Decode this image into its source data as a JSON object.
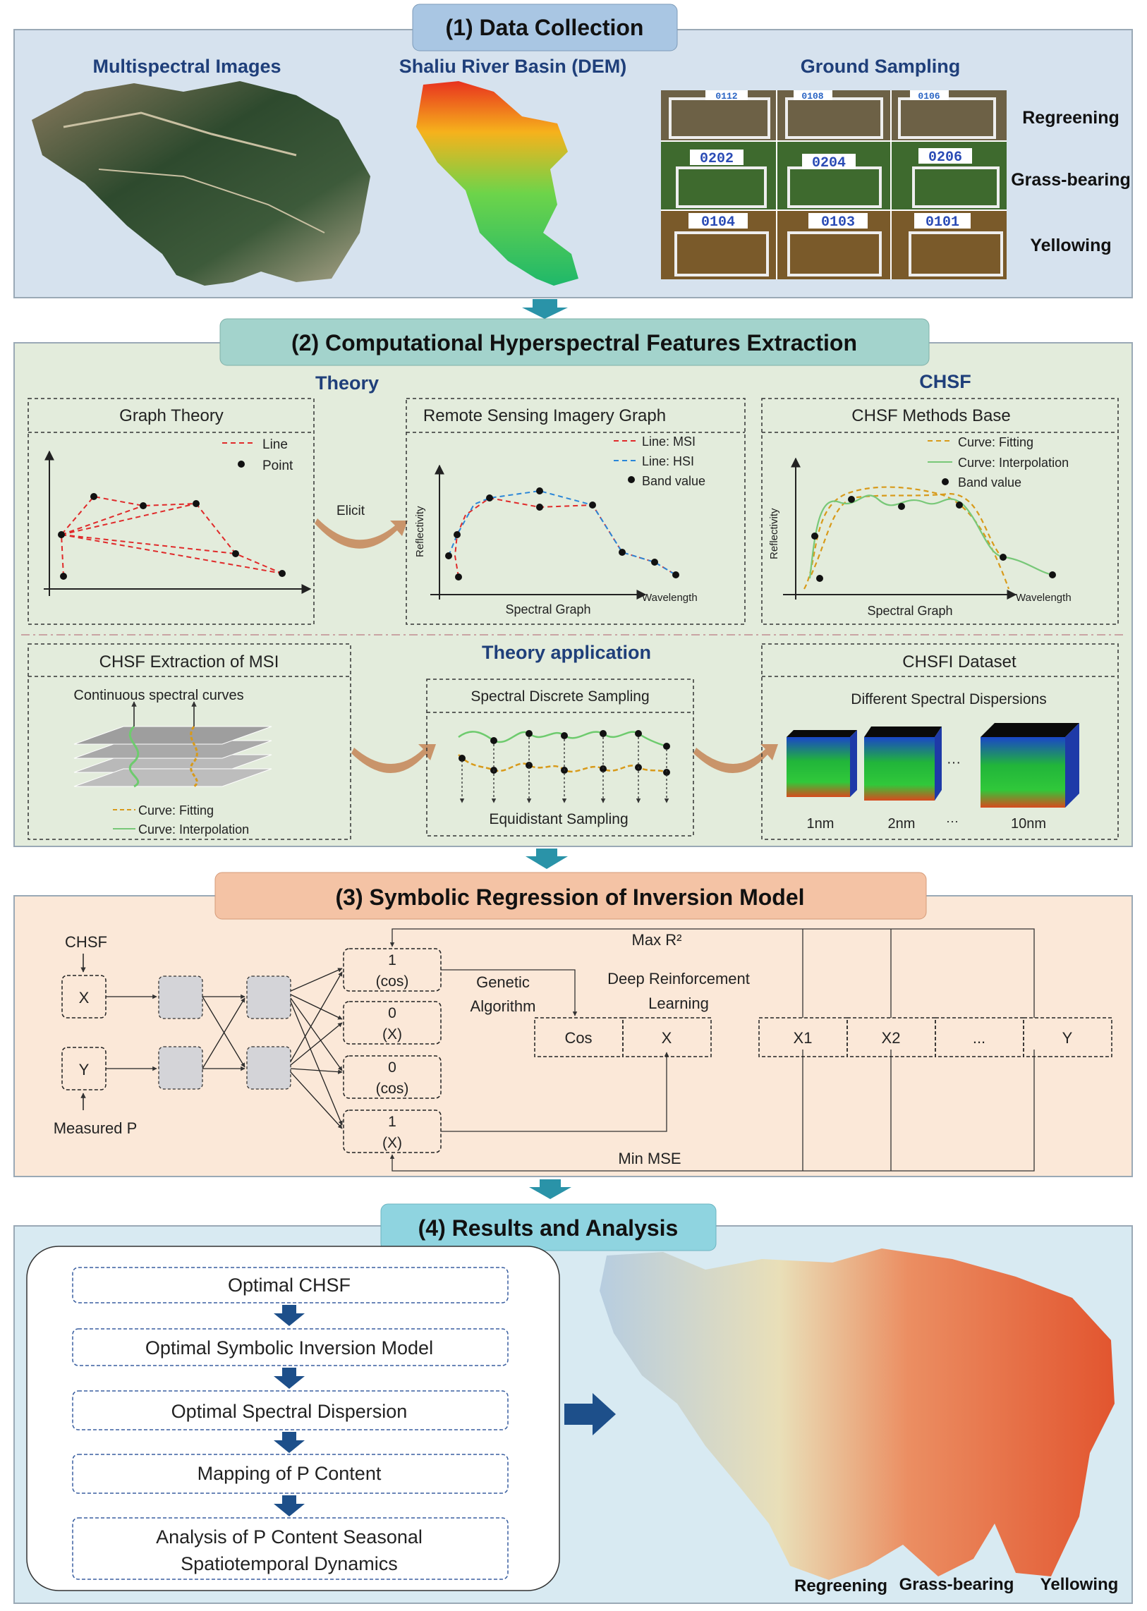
{
  "sections": {
    "s1": {
      "title": "(1) Data Collection",
      "multispectral_label": "Multispectral Images",
      "dem_label": "Shaliu River Basin (DEM)",
      "ground_label": "Ground Sampling",
      "rows": [
        "Regreening",
        "Grass-bearing",
        "Yellowing"
      ],
      "plot_ids": [
        [
          "0112",
          "0108",
          "0106"
        ],
        [
          "0202",
          "0204",
          "0206"
        ],
        [
          "0104",
          "0103",
          "0101"
        ]
      ],
      "colors": {
        "panel": "#d6e2ee",
        "title": "#a9c6e3"
      }
    },
    "s2": {
      "title": "(2) Computational Hyperspectral Features Extraction",
      "theory_label": "Theory",
      "chsf_label": "CHSF",
      "theory_application_label": "Theory application",
      "graph_theory": {
        "title": "Graph Theory",
        "legend": [
          "Line",
          "Point"
        ]
      },
      "elicit_label": "Elicit",
      "rsi_graph": {
        "title": "Remote Sensing Imagery Graph",
        "legend": [
          "Line: MSI",
          "Line: HSI",
          "Band value"
        ],
        "ylabel": "Reflectivity",
        "xlabel": "Wavelength",
        "caption": "Spectral Graph"
      },
      "methods_base": {
        "title": "CHSF Methods Base",
        "legend": [
          "Curve: Fitting",
          "Curve: Interpolation",
          "Band value"
        ],
        "ylabel": "Reflectivity",
        "xlabel": "Wavelength",
        "caption": "Spectral Graph"
      },
      "msi_extraction": {
        "title": "CHSF Extraction of MSI",
        "subtitle": "Continuous spectral curves",
        "legend": [
          "Curve: Fitting",
          "Curve: Interpolation"
        ]
      },
      "discrete_sampling": {
        "title": "Spectral Discrete Sampling",
        "caption": "Equidistant Sampling"
      },
      "dataset": {
        "title": "CHSFI Dataset",
        "subtitle": "Different Spectral Dispersions",
        "labels": [
          "1nm",
          "2nm",
          "···",
          "10nm"
        ],
        "dots": "···"
      },
      "colors": {
        "panel": "#e3ecdc",
        "title": "#a3d3cc"
      }
    },
    "s3": {
      "title": "(3) Symbolic Regression of Inversion Model",
      "chsf": "CHSF",
      "x": "X",
      "y": "Y",
      "measured": "Measured P",
      "slots": [
        [
          "1",
          "(cos)"
        ],
        [
          "0",
          "(X)"
        ],
        [
          "0",
          "(cos)"
        ],
        [
          "1",
          "(X)"
        ]
      ],
      "max_r2": "Max R²",
      "min_mse": "Min MSE",
      "genetic": [
        "Genetic",
        "Algorithm"
      ],
      "drl": [
        "Deep Reinforcement",
        "Learning"
      ],
      "cos_x": [
        "Cos",
        "X"
      ],
      "vars": [
        "X1",
        "X2",
        "...",
        "Y"
      ],
      "colors": {
        "panel": "#fbe8d8",
        "title": "#f4c3a5"
      }
    },
    "s4": {
      "title": "(4) Results and Analysis",
      "steps": [
        "Optimal CHSF",
        "Optimal Symbolic Inversion Model",
        "Optimal Spectral Dispersion",
        "Mapping of P Content"
      ],
      "last_step": [
        "Analysis of P Content Seasonal",
        "Spatiotemporal Dynamics"
      ],
      "map_labels": [
        "Regreening",
        "Grass-bearing",
        "Yellowing"
      ],
      "colors": {
        "panel": "#d8eaf2",
        "title": "#8fd4e0"
      }
    }
  }
}
